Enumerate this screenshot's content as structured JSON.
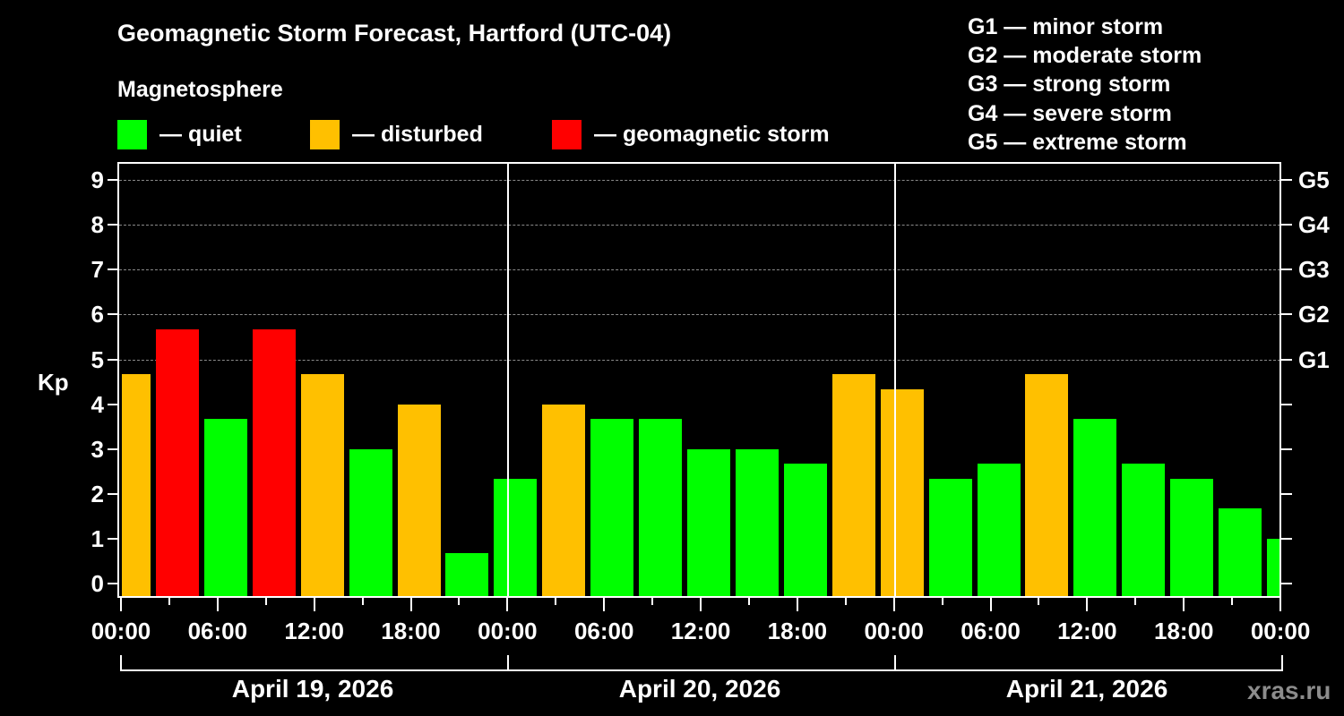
{
  "header": {
    "title": "Geomagnetic Storm Forecast, Hartford (UTC-04)",
    "subtitle": "Magnetosphere"
  },
  "legend": {
    "items": [
      {
        "label": "— quiet",
        "color": "#00ff00"
      },
      {
        "label": "— disturbed",
        "color": "#ffc000"
      },
      {
        "label": "— geomagnetic storm",
        "color": "#ff0000"
      }
    ]
  },
  "storm_scale": {
    "items": [
      "G1 — minor storm",
      "G2 — moderate storm",
      "G3 — strong storm",
      "G4 — severe storm",
      "G5 — extreme storm"
    ]
  },
  "axes": {
    "y_label": "Kp",
    "y_ticks": [
      "0",
      "1",
      "2",
      "3",
      "4",
      "5",
      "6",
      "7",
      "8",
      "9"
    ],
    "g_ticks": [
      "G1",
      "G2",
      "G3",
      "G4",
      "G5"
    ],
    "x_ticks": [
      "00:00",
      "06:00",
      "12:00",
      "18:00",
      "00:00",
      "06:00",
      "12:00",
      "18:00",
      "00:00",
      "06:00",
      "12:00",
      "18:00",
      "00:00"
    ],
    "dates": [
      "April 19, 2026",
      "April 20, 2026",
      "April 21, 2026"
    ]
  },
  "credit": "xras.ru",
  "colors": {
    "quiet": "#00ff00",
    "disturbed": "#ffc000",
    "storm": "#ff0000",
    "background": "#000000",
    "grid": "#8a8a8a"
  },
  "chart_data": {
    "type": "bar",
    "title": "Geomagnetic Storm Forecast, Hartford (UTC-04)",
    "xlabel": "",
    "ylabel": "Kp",
    "ylim": [
      0,
      9
    ],
    "grid": true,
    "legend_position": "top",
    "categories": [
      "Apr 19 00:00",
      "Apr 19 03:00",
      "Apr 19 06:00",
      "Apr 19 09:00",
      "Apr 19 12:00",
      "Apr 19 15:00",
      "Apr 19 18:00",
      "Apr 19 21:00",
      "Apr 20 00:00",
      "Apr 20 03:00",
      "Apr 20 06:00",
      "Apr 20 09:00",
      "Apr 20 12:00",
      "Apr 20 15:00",
      "Apr 20 18:00",
      "Apr 20 21:00",
      "Apr 21 00:00",
      "Apr 21 03:00",
      "Apr 21 06:00",
      "Apr 21 09:00",
      "Apr 21 12:00",
      "Apr 21 15:00",
      "Apr 21 18:00",
      "Apr 21 21:00",
      "Apr 22 00:00"
    ],
    "values": [
      4.67,
      5.67,
      3.67,
      5.67,
      4.67,
      3.0,
      4.0,
      0.67,
      2.33,
      4.0,
      3.67,
      3.67,
      3.0,
      3.0,
      2.67,
      4.67,
      4.33,
      2.33,
      2.67,
      4.67,
      3.67,
      2.67,
      2.33,
      1.67,
      1.0
    ],
    "status": [
      "disturbed",
      "storm",
      "quiet",
      "storm",
      "disturbed",
      "quiet",
      "disturbed",
      "quiet",
      "quiet",
      "disturbed",
      "quiet",
      "quiet",
      "quiet",
      "quiet",
      "quiet",
      "disturbed",
      "disturbed",
      "quiet",
      "quiet",
      "disturbed",
      "quiet",
      "quiet",
      "quiet",
      "quiet",
      "quiet"
    ],
    "right_axis": {
      "G1": 5,
      "G2": 6,
      "G3": 7,
      "G4": 8,
      "G5": 9
    }
  }
}
